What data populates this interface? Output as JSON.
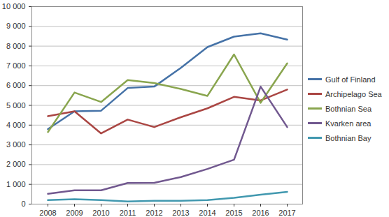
{
  "chart_data": {
    "type": "line",
    "categories": [
      "2008",
      "2009",
      "2010",
      "2011",
      "2012",
      "2013",
      "2014",
      "2015",
      "2016",
      "2017"
    ],
    "series": [
      {
        "name": "Gulf of Finland",
        "color": "#4572A7",
        "values": [
          3800,
          4700,
          4730,
          5880,
          5950,
          6900,
          7950,
          8480,
          8650,
          8330
        ]
      },
      {
        "name": "Archipelago Sea",
        "color": "#AA4643",
        "values": [
          4450,
          4700,
          3580,
          4280,
          3900,
          4400,
          4850,
          5430,
          5250,
          5800
        ]
      },
      {
        "name": "Bothnian Sea",
        "color": "#89A54E",
        "values": [
          3650,
          5650,
          5170,
          6280,
          6130,
          5830,
          5480,
          7580,
          5130,
          7130
        ]
      },
      {
        "name": "Kvarken area",
        "color": "#71588F",
        "values": [
          520,
          700,
          700,
          1070,
          1080,
          1370,
          1780,
          2250,
          5950,
          3900
        ]
      },
      {
        "name": "Bothnian Bay",
        "color": "#4198AF",
        "values": [
          200,
          250,
          200,
          130,
          170,
          170,
          200,
          320,
          480,
          620
        ]
      }
    ],
    "ylim": [
      0,
      10000
    ],
    "yticks": [
      0,
      {
        "value": 1000,
        "label": "1 000"
      },
      {
        "value": 2000,
        "label": "2 000"
      },
      {
        "value": 3000,
        "label": "3 000"
      },
      {
        "value": 4000,
        "label": "4 000"
      },
      {
        "value": 5000,
        "label": "5 000"
      },
      {
        "value": 6000,
        "label": "6 000"
      },
      {
        "value": 7000,
        "label": "7 000"
      },
      {
        "value": 8000,
        "label": "8 000"
      },
      {
        "value": 9000,
        "label": "9 000"
      },
      {
        "value": 10000,
        "label": "10 000"
      }
    ],
    "grid": true,
    "legend": "right"
  }
}
